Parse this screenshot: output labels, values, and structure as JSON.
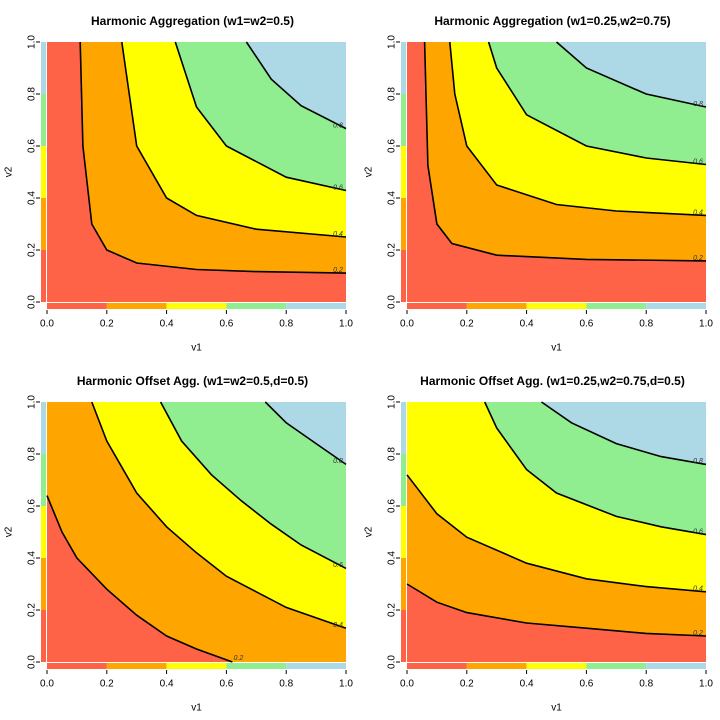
{
  "chart_data": [
    {
      "type": "contour",
      "title": "Harmonic Aggregation (w1=w2=0.5)",
      "xlabel": "v1",
      "ylabel": "v2",
      "xlim": [
        0,
        1
      ],
      "ylim": [
        0,
        1
      ],
      "xticks": [
        {
          "value": 0,
          "label": "0.0"
        },
        0.2,
        0.4,
        0.6,
        0.8,
        {
          "value": 1,
          "label": "1.0"
        }
      ],
      "yticks": [
        {
          "value": 0,
          "label": "0.0"
        },
        0.2,
        0.4,
        0.6,
        0.8,
        {
          "value": 1,
          "label": "1.0"
        }
      ],
      "colors": [
        "#ff6347",
        "#ffa500",
        "#ffff00",
        "#90ee90",
        "#add8e6"
      ],
      "contours": [
        {
          "level": 0.2,
          "x": [
            0.111,
            0.12,
            0.15,
            0.2,
            0.3,
            0.5,
            0.7,
            1
          ],
          "y": [
            1,
            0.6,
            0.3,
            0.2,
            0.15,
            0.125,
            0.117,
            0.111
          ]
        },
        {
          "level": 0.4,
          "x": [
            0.25,
            0.3,
            0.4,
            0.5,
            0.7,
            1
          ],
          "y": [
            1,
            0.6,
            0.4,
            0.333,
            0.28,
            0.25
          ]
        },
        {
          "level": 0.6,
          "x": [
            0.429,
            0.5,
            0.6,
            0.8,
            1
          ],
          "y": [
            1,
            0.75,
            0.6,
            0.48,
            0.429
          ]
        },
        {
          "level": 0.8,
          "x": [
            0.667,
            0.75,
            0.85,
            1
          ],
          "y": [
            1,
            0.857,
            0.755,
            0.667
          ]
        }
      ]
    },
    {
      "type": "contour",
      "title": "Harmonic Aggregation (w1=0.25,w2=0.75)",
      "xlabel": "v1",
      "ylabel": "v2",
      "xlim": [
        0,
        1
      ],
      "ylim": [
        0,
        1
      ],
      "xticks": [
        {
          "value": 0,
          "label": "0.0"
        },
        0.2,
        0.4,
        0.6,
        0.8,
        {
          "value": 1,
          "label": "1.0"
        }
      ],
      "yticks": [
        {
          "value": 0,
          "label": "0.0"
        },
        0.2,
        0.4,
        0.6,
        0.8,
        {
          "value": 1,
          "label": "1.0"
        }
      ],
      "colors": [
        "#ff6347",
        "#ffa500",
        "#ffff00",
        "#90ee90",
        "#add8e6"
      ],
      "contours": [
        {
          "level": 0.2,
          "x": [
            0.059,
            0.07,
            0.1,
            0.15,
            0.3,
            0.6,
            1
          ],
          "y": [
            1,
            0.525,
            0.3,
            0.225,
            0.18,
            0.164,
            0.158
          ]
        },
        {
          "level": 0.4,
          "x": [
            0.143,
            0.16,
            0.2,
            0.3,
            0.5,
            0.7,
            1
          ],
          "y": [
            1,
            0.8,
            0.6,
            0.45,
            0.375,
            0.35,
            0.333
          ]
        },
        {
          "level": 0.6,
          "x": [
            0.273,
            0.3,
            0.4,
            0.6,
            0.8,
            1
          ],
          "y": [
            1,
            0.9,
            0.72,
            0.6,
            0.554,
            0.529
          ]
        },
        {
          "level": 0.8,
          "x": [
            0.5,
            0.6,
            0.8,
            1
          ],
          "y": [
            1,
            0.9,
            0.8,
            0.75
          ]
        }
      ]
    },
    {
      "type": "contour",
      "title": "Harmonic Offset Agg. (w1=w2=0.5,d=0.5)",
      "xlabel": "v1",
      "ylabel": "v2",
      "xlim": [
        0,
        1
      ],
      "ylim": [
        0,
        1
      ],
      "xticks": [
        {
          "value": 0,
          "label": "0.0"
        },
        0.2,
        0.4,
        0.6,
        0.8,
        {
          "value": 1,
          "label": "1.0"
        }
      ],
      "yticks": [
        {
          "value": 0,
          "label": "0.0"
        },
        0.2,
        0.4,
        0.6,
        0.8,
        {
          "value": 1,
          "label": "1.0"
        }
      ],
      "colors": [
        "#ff6347",
        "#ffa500",
        "#ffff00",
        "#90ee90",
        "#add8e6"
      ],
      "contours": [
        {
          "level": 0.2,
          "x": [
            0,
            0.05,
            0.1,
            0.2,
            0.3,
            0.4,
            0.5,
            0.62
          ],
          "y": [
            0.64,
            0.5,
            0.4,
            0.28,
            0.18,
            0.1,
            0.05,
            0
          ]
        },
        {
          "level": 0.4,
          "x": [
            0.15,
            0.2,
            0.3,
            0.4,
            0.5,
            0.6,
            0.8,
            1
          ],
          "y": [
            1,
            0.85,
            0.65,
            0.52,
            0.42,
            0.33,
            0.21,
            0.13
          ]
        },
        {
          "level": 0.6,
          "x": [
            0.38,
            0.45,
            0.55,
            0.65,
            0.75,
            0.85,
            1
          ],
          "y": [
            1,
            0.85,
            0.72,
            0.62,
            0.53,
            0.45,
            0.36
          ]
        },
        {
          "level": 0.8,
          "x": [
            0.73,
            0.8,
            0.9,
            1
          ],
          "y": [
            1,
            0.92,
            0.84,
            0.76
          ]
        }
      ]
    },
    {
      "type": "contour",
      "title": "Harmonic Offset Agg. (w1=0.25,w2=0.75,d=0.5)",
      "xlabel": "v1",
      "ylabel": "v2",
      "xlim": [
        0,
        1
      ],
      "ylim": [
        0,
        1
      ],
      "xticks": [
        {
          "value": 0,
          "label": "0.0"
        },
        0.2,
        0.4,
        0.6,
        0.8,
        {
          "value": 1,
          "label": "1.0"
        }
      ],
      "yticks": [
        {
          "value": 0,
          "label": "0.0"
        },
        0.2,
        0.4,
        0.6,
        0.8,
        {
          "value": 1,
          "label": "1.0"
        }
      ],
      "colors": [
        "#ff6347",
        "#ffa500",
        "#ffff00",
        "#90ee90",
        "#add8e6"
      ],
      "contours": [
        {
          "level": 0.2,
          "x": [
            0,
            0.1,
            0.2,
            0.4,
            0.6,
            0.8,
            1
          ],
          "y": [
            0.3,
            0.23,
            0.19,
            0.15,
            0.13,
            0.11,
            0.1
          ]
        },
        {
          "level": 0.4,
          "x": [
            0,
            0.1,
            0.2,
            0.4,
            0.6,
            0.8,
            1
          ],
          "y": [
            0.72,
            0.57,
            0.48,
            0.38,
            0.32,
            0.29,
            0.27
          ]
        },
        {
          "level": 0.6,
          "x": [
            0.26,
            0.3,
            0.4,
            0.5,
            0.7,
            0.85,
            1
          ],
          "y": [
            1,
            0.9,
            0.74,
            0.65,
            0.56,
            0.52,
            0.49
          ]
        },
        {
          "level": 0.8,
          "x": [
            0.45,
            0.55,
            0.7,
            0.85,
            1
          ],
          "y": [
            1,
            0.92,
            0.84,
            0.79,
            0.76
          ]
        }
      ]
    }
  ]
}
